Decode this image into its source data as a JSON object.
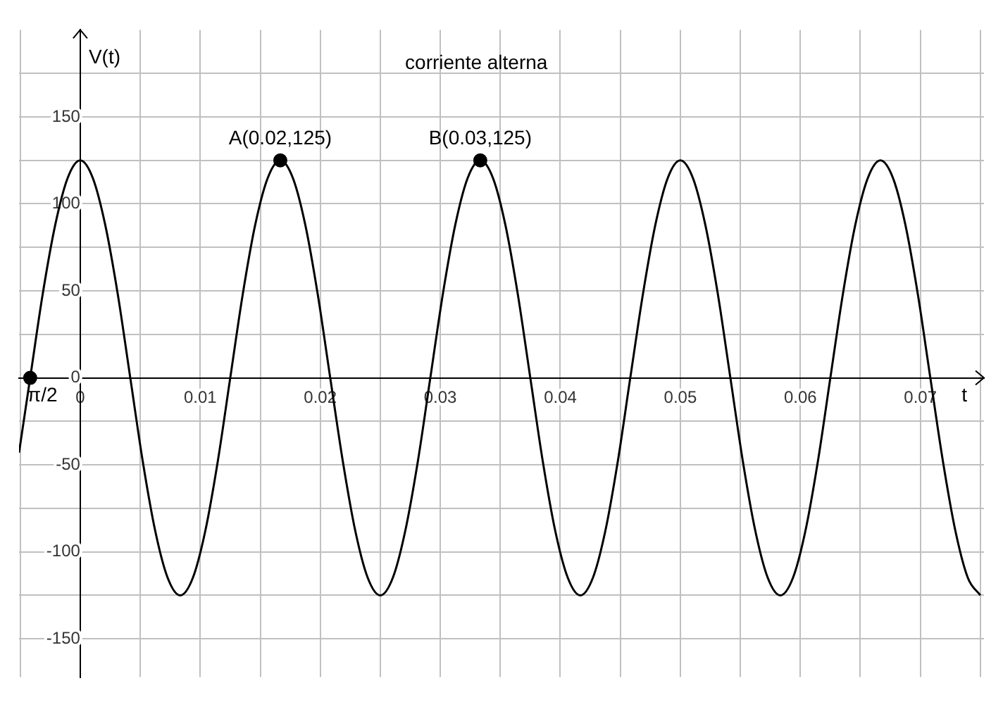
{
  "chart_data": {
    "type": "line",
    "title": "corriente alterna",
    "xlabel": "t",
    "ylabel": "V(t)",
    "xlim": [
      -0.0051,
      0.0753
    ],
    "ylim": [
      -172,
      200
    ],
    "xticks": [
      {
        "value": -0.005,
        "label": null
      },
      0,
      {
        "value": 0.005,
        "label": null
      },
      0.01,
      {
        "value": 0.015,
        "label": null
      },
      0.02,
      {
        "value": 0.025,
        "label": null
      },
      0.03,
      {
        "value": 0.035,
        "label": null
      },
      0.04,
      {
        "value": 0.045,
        "label": null
      },
      0.05,
      {
        "value": 0.055,
        "label": null
      },
      0.06,
      {
        "value": 0.065,
        "label": null
      },
      0.07,
      {
        "value": 0.075,
        "label": null
      }
    ],
    "yticks": [
      -150,
      {
        "value": -125,
        "label": null
      },
      -100,
      {
        "value": -75,
        "label": null
      },
      -50,
      {
        "value": -25,
        "label": null
      },
      0,
      {
        "value": 25,
        "label": null
      },
      50,
      {
        "value": 75,
        "label": null
      },
      100,
      {
        "value": 125,
        "label": null
      },
      150,
      {
        "value": 175,
        "label": null
      }
    ],
    "grid": true,
    "series": [
      {
        "color": "#000000",
        "marker": "none",
        "x": [
          -0.0051,
          -0.00417,
          -0.00313,
          -0.00208,
          -0.00104,
          0,
          0.00104,
          0.00208,
          0.00313,
          0.00417,
          0.00521,
          0.00625,
          0.00729,
          0.00833,
          0.00938,
          0.01042,
          0.01146,
          0.0125,
          0.01354,
          0.01458,
          0.01563,
          0.01667,
          0.01771,
          0.01875,
          0.01979,
          0.02083,
          0.02188,
          0.02292,
          0.02396,
          0.025,
          0.02604,
          0.02708,
          0.02813,
          0.02917,
          0.03021,
          0.03125,
          0.03229,
          0.03333,
          0.03438,
          0.03542,
          0.03646,
          0.0375,
          0.03854,
          0.03958,
          0.04063,
          0.04167,
          0.04271,
          0.04375,
          0.04479,
          0.04583,
          0.04688,
          0.04792,
          0.04896,
          0.05,
          0.05104,
          0.05208,
          0.05313,
          0.05417,
          0.05521,
          0.05625,
          0.05729,
          0.05833,
          0.05938,
          0.06042,
          0.06146,
          0.0625,
          0.06354,
          0.06458,
          0.06563,
          0.06667,
          0.06771,
          0.06875,
          0.06979,
          0.07083,
          0.07188,
          0.07292,
          0.07396,
          0.075
        ],
        "values": [
          -43,
          0,
          48,
          88,
          115,
          125,
          115,
          88,
          48,
          0,
          -48,
          -88,
          -115,
          -125,
          -115,
          -88,
          -48,
          0,
          48,
          88,
          115,
          125,
          115,
          88,
          48,
          0,
          -48,
          -88,
          -115,
          -125,
          -115,
          -88,
          -48,
          0,
          48,
          88,
          115,
          125,
          115,
          88,
          48,
          0,
          -48,
          -88,
          -115,
          -125,
          -115,
          -88,
          -48,
          0,
          48,
          88,
          115,
          125,
          115,
          88,
          48,
          0,
          -48,
          -88,
          -115,
          -125,
          -115,
          -88,
          -48,
          0,
          48,
          88,
          115,
          125,
          115,
          88,
          48,
          0,
          -48,
          -88,
          -115,
          -125
        ]
      },
      {
        "type": "scatter",
        "color": "#000000",
        "marker": "circle",
        "x": [
          -0.00417,
          0.01667,
          0.03333
        ],
        "values": [
          0,
          125,
          125
        ]
      }
    ],
    "annotations": [
      {
        "text": "π/2",
        "x": -0.00417,
        "y": 0
      },
      {
        "text": "A(0.02,125)",
        "x": 0.01667,
        "y": 125
      },
      {
        "text": "B(0.03,125)",
        "x": 0.03333,
        "y": 125
      }
    ]
  }
}
